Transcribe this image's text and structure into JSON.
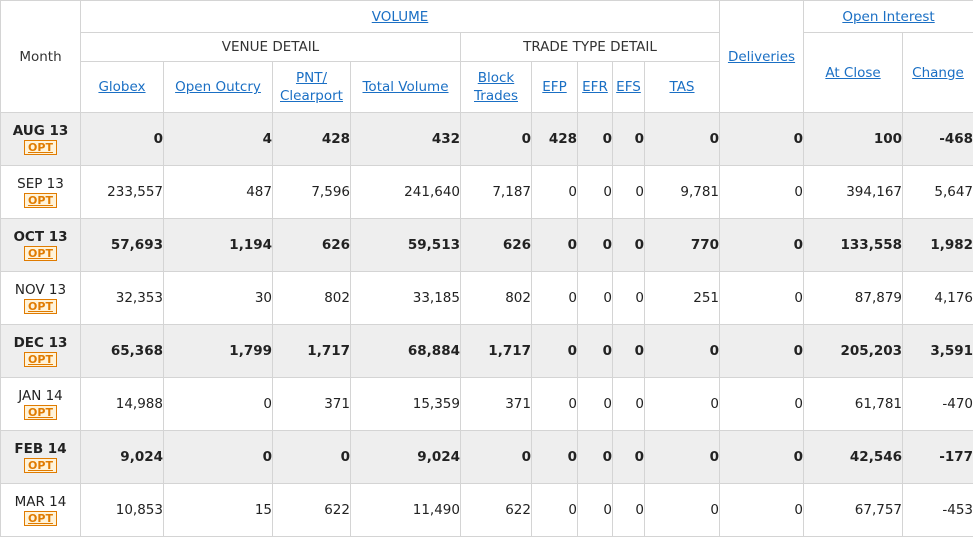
{
  "header": {
    "month_label": "Month",
    "volume_label": "VOLUME",
    "venue_detail_label": "VENUE DETAIL",
    "trade_type_detail_label": "TRADE TYPE DETAIL",
    "deliveries_label": "Deliveries",
    "open_interest_label": "Open Interest",
    "columns": {
      "globex": "Globex",
      "open_outcry": "Open Outcry",
      "pnt_line1": "PNT/",
      "pnt_line2": "Clearport",
      "total_volume": "Total Volume",
      "block_line1": "Block",
      "block_line2": "Trades",
      "efp": "EFP",
      "efr": "EFR",
      "efs": "EFS",
      "tas": "TAS",
      "at_close": "At Close",
      "change": "Change"
    }
  },
  "opt_badge": "OPT",
  "rows": [
    {
      "month": "AUG 13",
      "globex": "0",
      "open_outcry": "4",
      "pnt": "428",
      "total": "432",
      "block": "0",
      "efp": "428",
      "efr": "0",
      "efs": "0",
      "tas": "0",
      "deliveries": "0",
      "at_close": "100",
      "change": "-468"
    },
    {
      "month": "SEP 13",
      "globex": "233,557",
      "open_outcry": "487",
      "pnt": "7,596",
      "total": "241,640",
      "block": "7,187",
      "efp": "0",
      "efr": "0",
      "efs": "0",
      "tas": "9,781",
      "deliveries": "0",
      "at_close": "394,167",
      "change": "5,647"
    },
    {
      "month": "OCT 13",
      "globex": "57,693",
      "open_outcry": "1,194",
      "pnt": "626",
      "total": "59,513",
      "block": "626",
      "efp": "0",
      "efr": "0",
      "efs": "0",
      "tas": "770",
      "deliveries": "0",
      "at_close": "133,558",
      "change": "1,982"
    },
    {
      "month": "NOV 13",
      "globex": "32,353",
      "open_outcry": "30",
      "pnt": "802",
      "total": "33,185",
      "block": "802",
      "efp": "0",
      "efr": "0",
      "efs": "0",
      "tas": "251",
      "deliveries": "0",
      "at_close": "87,879",
      "change": "4,176"
    },
    {
      "month": "DEC 13",
      "globex": "65,368",
      "open_outcry": "1,799",
      "pnt": "1,717",
      "total": "68,884",
      "block": "1,717",
      "efp": "0",
      "efr": "0",
      "efs": "0",
      "tas": "0",
      "deliveries": "0",
      "at_close": "205,203",
      "change": "3,591"
    },
    {
      "month": "JAN 14",
      "globex": "14,988",
      "open_outcry": "0",
      "pnt": "371",
      "total": "15,359",
      "block": "371",
      "efp": "0",
      "efr": "0",
      "efs": "0",
      "tas": "0",
      "deliveries": "0",
      "at_close": "61,781",
      "change": "-470"
    },
    {
      "month": "FEB 14",
      "globex": "9,024",
      "open_outcry": "0",
      "pnt": "0",
      "total": "9,024",
      "block": "0",
      "efp": "0",
      "efr": "0",
      "efs": "0",
      "tas": "0",
      "deliveries": "0",
      "at_close": "42,546",
      "change": "-177"
    },
    {
      "month": "MAR 14",
      "globex": "10,853",
      "open_outcry": "15",
      "pnt": "622",
      "total": "11,490",
      "block": "622",
      "efp": "0",
      "efr": "0",
      "efs": "0",
      "tas": "0",
      "deliveries": "0",
      "at_close": "67,757",
      "change": "-453"
    }
  ]
}
